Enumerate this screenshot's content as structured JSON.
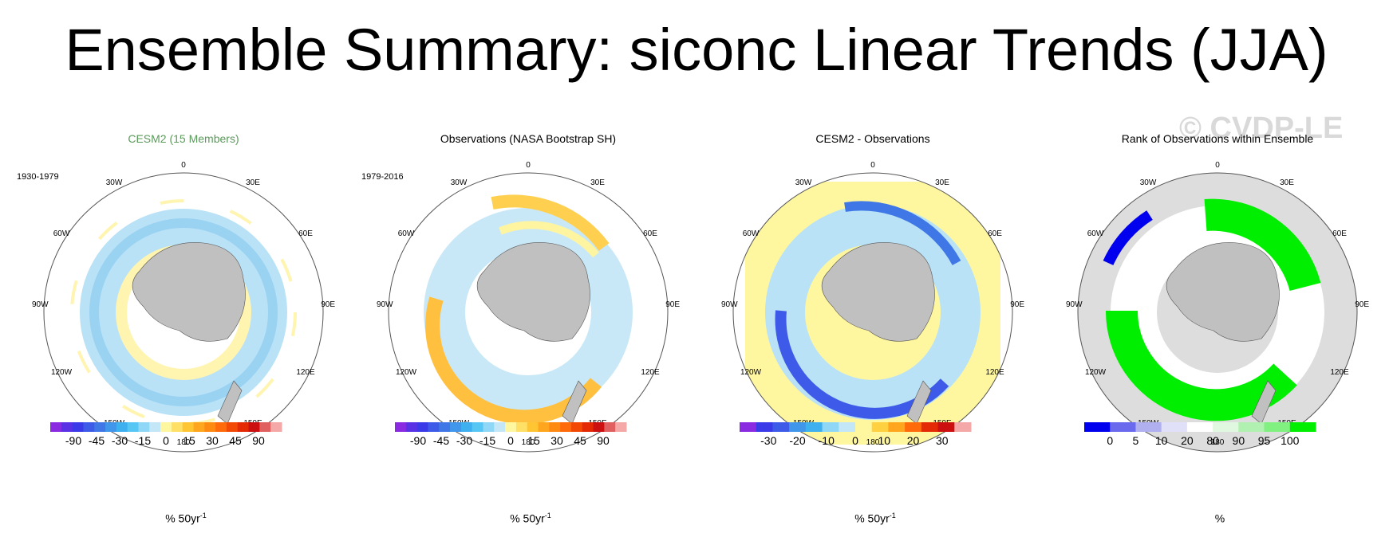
{
  "title": "Ensemble Summary: siconc Linear Trends (JJA)",
  "watermark": "© CVDP-LE",
  "lon_labels": [
    "0",
    "30E",
    "60E",
    "90E",
    "120E",
    "150E",
    "180",
    "150W",
    "120W",
    "90W",
    "60W",
    "30W"
  ],
  "panels": [
    {
      "title": "CESM2 (15 Members)",
      "title_color": "#5a9a5a",
      "period": "1930-1979",
      "colorbar": {
        "ticks": [
          "-90",
          "-45",
          "-30",
          "-15",
          "0",
          "15",
          "30",
          "45",
          "90"
        ],
        "unit": "% 50yr",
        "unit_sup": "-1",
        "colors": [
          "#8a2be2",
          "#5a32e6",
          "#3a3ae8",
          "#3d5ae8",
          "#3f78e6",
          "#3f96ea",
          "#3eb0f0",
          "#56c6f4",
          "#8fd7f7",
          "#c4e7f8",
          "#fff7a0",
          "#ffe066",
          "#ffc533",
          "#ffa51e",
          "#ff8a12",
          "#ff6a0a",
          "#f24a05",
          "#e42a05",
          "#cc1010",
          "#e06060",
          "#f5a8a8"
        ]
      }
    },
    {
      "title": "Observations (NASA Bootstrap SH)",
      "title_color": "#000000",
      "period": "1979-2016",
      "colorbar": {
        "ticks": [
          "-90",
          "-45",
          "-30",
          "-15",
          "0",
          "15",
          "30",
          "45",
          "90"
        ],
        "unit": "% 50yr",
        "unit_sup": "-1",
        "colors": [
          "#8a2be2",
          "#5a32e6",
          "#3a3ae8",
          "#3d5ae8",
          "#3f78e6",
          "#3f96ea",
          "#3eb0f0",
          "#56c6f4",
          "#8fd7f7",
          "#c4e7f8",
          "#fff7a0",
          "#ffe066",
          "#ffc533",
          "#ffa51e",
          "#ff8a12",
          "#ff6a0a",
          "#f24a05",
          "#e42a05",
          "#cc1010",
          "#e06060",
          "#f5a8a8"
        ]
      }
    },
    {
      "title": "CESM2 - Observations",
      "title_color": "#000000",
      "period": "",
      "colorbar": {
        "ticks": [
          "-30",
          "-20",
          "-10",
          "0",
          "10",
          "20",
          "30"
        ],
        "unit": "% 50yr",
        "unit_sup": "-1",
        "colors": [
          "#8a2be2",
          "#3a3ae8",
          "#3d5ae8",
          "#3f96ea",
          "#3eb0f0",
          "#8fd7f7",
          "#c4e7f8",
          "#fff7a0",
          "#ffd040",
          "#ffa51e",
          "#ff6a0a",
          "#e42a05",
          "#cc1010",
          "#f5a8a8"
        ]
      }
    },
    {
      "title": "Rank of Observations within Ensemble",
      "title_color": "#000000",
      "period": "",
      "colorbar": {
        "ticks": [
          "0",
          "5",
          "10",
          "20",
          "80",
          "90",
          "95",
          "100"
        ],
        "unit": "%",
        "unit_sup": "",
        "colors": [
          "#0000ee",
          "#6a6aee",
          "#b0b0f0",
          "#e0e0f8",
          "#ffffff",
          "#e0f8e0",
          "#b0f0b0",
          "#80f080",
          "#00ee00"
        ]
      }
    }
  ]
}
